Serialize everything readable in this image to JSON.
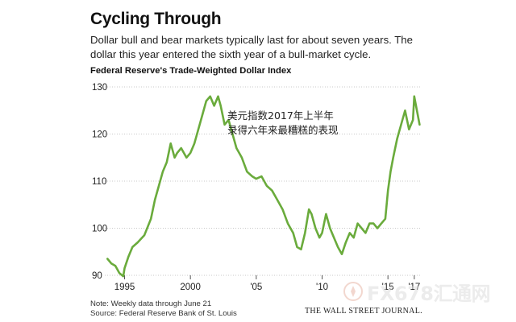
{
  "header": {
    "title": "Cycling Through",
    "subtitle": "Dollar bull and bear markets typically last for about seven years. The dollar this year entered the sixth year of a bull-market cycle.",
    "chart_title": "Federal Reserve's Trade-Weighted Dollar Index"
  },
  "annotation": {
    "line1": "美元指数2017年上半年",
    "line2": "录得六年来最糟糕的表现"
  },
  "footer": {
    "note": "Note: Weekly data through June 21",
    "source": "Source: Federal Reserve Bank of St. Louis",
    "publisher": "THE WALL STREET JOURNAL."
  },
  "watermark": {
    "text": "FX678汇通网"
  },
  "colors": {
    "line": "#6aab3c",
    "grid": "#c8c8c8",
    "text": "#222222"
  },
  "chart_data": {
    "type": "line",
    "title": "Federal Reserve's Trade-Weighted Dollar Index",
    "xlabel": "",
    "ylabel": "",
    "xlim": [
      1993.5,
      2017.5
    ],
    "ylim": [
      90,
      130
    ],
    "y_ticks": [
      90,
      100,
      110,
      120,
      130
    ],
    "x_ticks": [
      {
        "value": 1995,
        "label": "1995"
      },
      {
        "value": 2000,
        "label": "2000"
      },
      {
        "value": 2005,
        "label": "'05"
      },
      {
        "value": 2010,
        "label": "'10"
      },
      {
        "value": 2015,
        "label": "'15"
      },
      {
        "value": 2017,
        "label": "'17"
      }
    ],
    "grid": "horizontal dotted",
    "series": [
      {
        "x": [
          1993.7,
          1994.0,
          1994.3,
          1994.6,
          1994.9,
          1995.0,
          1995.3,
          1995.6,
          1996.0,
          1996.5,
          1997.0,
          1997.3,
          1997.6,
          1997.9,
          1998.2,
          1998.5,
          1998.8,
          1999.0,
          1999.3,
          1999.7,
          2000.0,
          2000.3,
          2000.6,
          2000.9,
          2001.2,
          2001.5,
          2001.8,
          2002.1,
          2002.3,
          2002.6,
          2002.9,
          2003.2,
          2003.5,
          2003.9,
          2004.3,
          2004.7,
          2005.0,
          2005.4,
          2005.8,
          2006.2,
          2006.6,
          2007.0,
          2007.4,
          2007.8,
          2008.1,
          2008.4,
          2008.7,
          2009.0,
          2009.2,
          2009.5,
          2009.8,
          2010.0,
          2010.3,
          2010.6,
          2010.9,
          2011.2,
          2011.5,
          2011.8,
          2012.1,
          2012.4,
          2012.7,
          2013.0,
          2013.3,
          2013.6,
          2013.9,
          2014.2,
          2014.5,
          2014.8,
          2015.0,
          2015.2,
          2015.4,
          2015.7,
          2016.0,
          2016.3,
          2016.6,
          2016.9,
          2017.0,
          2017.2,
          2017.4
        ],
        "y": [
          93.5,
          92.5,
          92,
          90.5,
          89.8,
          91.5,
          94,
          96,
          97,
          98.5,
          102,
          106,
          109,
          112,
          114,
          118,
          115,
          116,
          117,
          115,
          116,
          118,
          121,
          124,
          127,
          128,
          126,
          128,
          126,
          122,
          123,
          120,
          117,
          115,
          112,
          111,
          110.5,
          111,
          109,
          108,
          106,
          104,
          101,
          99,
          96,
          95.5,
          99,
          104,
          103,
          100,
          98,
          99,
          103,
          100,
          98,
          96,
          94.5,
          97,
          99,
          98,
          101,
          100,
          99,
          101,
          101,
          100,
          101,
          102,
          108,
          112,
          115,
          119,
          122,
          125,
          121,
          123,
          128,
          125,
          122
        ]
      }
    ]
  }
}
